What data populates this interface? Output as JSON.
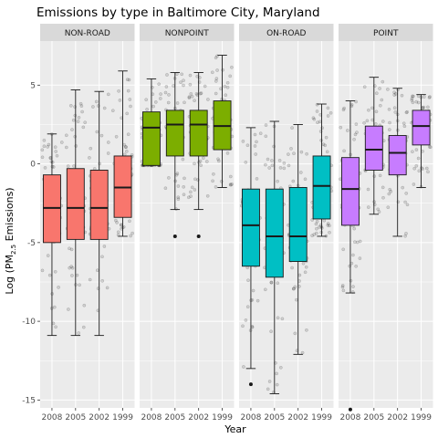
{
  "chart_data": {
    "type": "box",
    "title": "Emissions by type in Baltimore City, Maryland",
    "xlabel": "Year",
    "ylabel": {
      "prefix": "Log (PM",
      "subscript": "2.5",
      "suffix": " Emissions)"
    },
    "ylim": [
      -15.5,
      7.8
    ],
    "y_ticks": [
      -15,
      -10,
      -5,
      0,
      5
    ],
    "categories": [
      "2008",
      "2005",
      "2002",
      "1999"
    ],
    "facet_colors": {
      "NON-ROAD": "#F8766D",
      "NONPOINT": "#7CAE00",
      "ON-ROAD": "#00BFC4",
      "POINT": "#C77CFF"
    },
    "colors": {
      "panel_background": "#EBEBEB",
      "grid_line": "#FFFFFF",
      "strip_background": "#D9D9D9",
      "jitter_point": "#000000"
    },
    "facets": [
      {
        "name": "NON-ROAD",
        "boxes": [
          {
            "year": "2008",
            "min": -10.9,
            "q1": -5.0,
            "median": -2.8,
            "q3": -0.7,
            "max": 1.9
          },
          {
            "year": "2005",
            "min": -10.9,
            "q1": -4.8,
            "median": -2.8,
            "q3": -0.3,
            "max": 4.7
          },
          {
            "year": "2002",
            "min": -10.9,
            "q1": -4.8,
            "median": -2.8,
            "q3": -0.4,
            "max": 4.6
          },
          {
            "year": "1999",
            "min": -4.6,
            "q1": -3.4,
            "median": -1.5,
            "q3": 0.5,
            "max": 5.9
          }
        ]
      },
      {
        "name": "NONPOINT",
        "boxes": [
          {
            "year": "2008",
            "min": -0.1,
            "q1": -0.1,
            "median": 2.3,
            "q3": 3.3,
            "max": 5.4
          },
          {
            "year": "2005",
            "min": -2.9,
            "q1": 0.5,
            "median": 2.5,
            "q3": 3.4,
            "max": 5.8,
            "outliers": [
              -4.6
            ]
          },
          {
            "year": "2002",
            "min": -2.9,
            "q1": 0.5,
            "median": 2.5,
            "q3": 3.4,
            "max": 5.8,
            "outliers": [
              -4.6
            ]
          },
          {
            "year": "1999",
            "min": -1.5,
            "q1": 0.9,
            "median": 2.4,
            "q3": 4.0,
            "max": 6.9
          }
        ]
      },
      {
        "name": "ON-ROAD",
        "boxes": [
          {
            "year": "2008",
            "min": -13.0,
            "q1": -6.5,
            "median": -3.9,
            "q3": -1.6,
            "max": 2.3,
            "outliers": [
              -14.0
            ]
          },
          {
            "year": "2005",
            "min": -14.6,
            "q1": -7.2,
            "median": -4.6,
            "q3": -1.6,
            "max": 2.7
          },
          {
            "year": "2002",
            "min": -12.1,
            "q1": -6.2,
            "median": -4.6,
            "q3": -1.5,
            "max": 2.5
          },
          {
            "year": "1999",
            "min": -4.6,
            "q1": -3.5,
            "median": -1.4,
            "q3": 0.5,
            "max": 3.8
          }
        ]
      },
      {
        "name": "POINT",
        "boxes": [
          {
            "year": "2008",
            "min": -8.2,
            "q1": -3.9,
            "median": -1.6,
            "q3": 0.4,
            "max": 4.0,
            "outliers": [
              -15.6
            ]
          },
          {
            "year": "2005",
            "min": -3.2,
            "q1": -0.4,
            "median": 0.9,
            "q3": 2.4,
            "max": 5.5
          },
          {
            "year": "2002",
            "min": -4.6,
            "q1": -0.7,
            "median": 0.7,
            "q3": 1.8,
            "max": 4.8
          },
          {
            "year": "1999",
            "min": -1.5,
            "q1": 1.2,
            "median": 2.4,
            "q3": 3.4,
            "max": 4.4
          }
        ]
      }
    ]
  }
}
